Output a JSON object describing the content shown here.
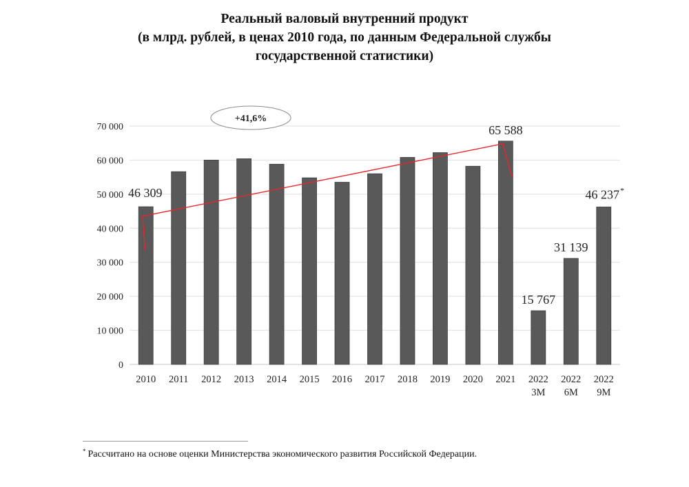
{
  "chart_data": {
    "type": "bar",
    "title": [
      "Реальный валовый внутренний продукт",
      "(в млрд. рублей, в ценах 2010 года, по данным Федеральной службы",
      "государственной статистики)"
    ],
    "xlabel": "",
    "ylabel": "",
    "ylim": [
      0,
      70000
    ],
    "yticks": [
      0,
      10000,
      20000,
      30000,
      40000,
      50000,
      60000,
      70000
    ],
    "ytick_labels": [
      "0",
      "10 000",
      "20 000",
      "30 000",
      "40 000",
      "50 000",
      "60 000",
      "70 000"
    ],
    "grid": true,
    "categories": [
      [
        "2010"
      ],
      [
        "2011"
      ],
      [
        "2012"
      ],
      [
        "2013"
      ],
      [
        "2014"
      ],
      [
        "2015"
      ],
      [
        "2016"
      ],
      [
        "2017"
      ],
      [
        "2018"
      ],
      [
        "2019"
      ],
      [
        "2020"
      ],
      [
        "2021"
      ],
      [
        "2022",
        "3M"
      ],
      [
        "2022",
        "6M"
      ],
      [
        "2022",
        "9M"
      ]
    ],
    "values": [
      46309,
      56600,
      60000,
      60400,
      58800,
      54800,
      53500,
      56000,
      60800,
      62200,
      58200,
      65588,
      15767,
      31139,
      46237
    ],
    "data_labels": [
      {
        "index": 0,
        "text": "46 309"
      },
      {
        "index": 11,
        "text": "65 588"
      },
      {
        "index": 12,
        "text": "15 767"
      },
      {
        "index": 13,
        "text": "31 139"
      },
      {
        "index": 14,
        "text": "46 237",
        "marker": "*"
      }
    ],
    "bar_color": "#595959",
    "trend_annotation": {
      "label": "+41,6%",
      "from_index": 0,
      "to_index": 11,
      "color": "#e8262b"
    }
  },
  "footnote": {
    "marker": "*",
    "text": "Рассчитано на основе оценки Министерства экономического развития Российской Федерации."
  }
}
